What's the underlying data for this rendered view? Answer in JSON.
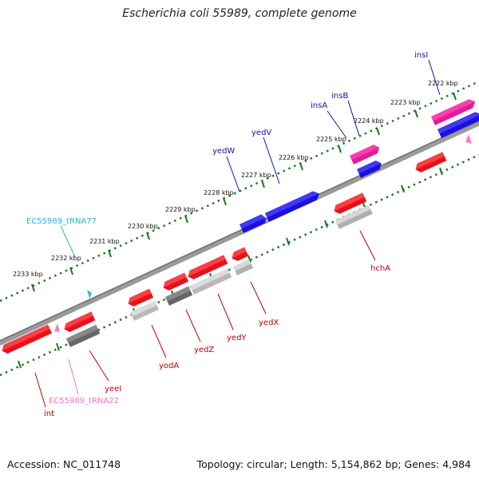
{
  "title": "Escherichia coli 55989, complete genome",
  "footer": {
    "accession": "Accession: NC_011748",
    "stats": "Topology: circular; Length: 5,154,862 bp; Genes: 4,984"
  },
  "scale_labels": [
    "2222 kbp",
    "2223 kbp",
    "2224 kbp",
    "2225 kbp",
    "2226 kbp",
    "2227 kbp",
    "2228 kbp",
    "2229 kbp",
    "2230 kbp",
    "2231 kbp",
    "2232 kbp",
    "2233 kbp"
  ],
  "forward_gene_labels": [
    "insI",
    "insB",
    "insA",
    "yedV",
    "yedW",
    "EC55989_tRNA77"
  ],
  "reverse_gene_labels": [
    "hchA",
    "yedX",
    "yedY",
    "yedZ",
    "yodA",
    "yeeI",
    "int",
    "EC55989_tRNA22"
  ],
  "colors": {
    "gene_red": "#e8101a",
    "gene_blue": "#1a10e0",
    "gene_magenta": "#e8189a",
    "trna_cyan": "#30b8e0",
    "trna_pink": "#f080c0",
    "tick_green": "#1c7a1c",
    "label_blue": "#1010b0",
    "label_red": "#c00000",
    "label_cyan": "#30b0d8",
    "label_pink": "#e878c0"
  }
}
